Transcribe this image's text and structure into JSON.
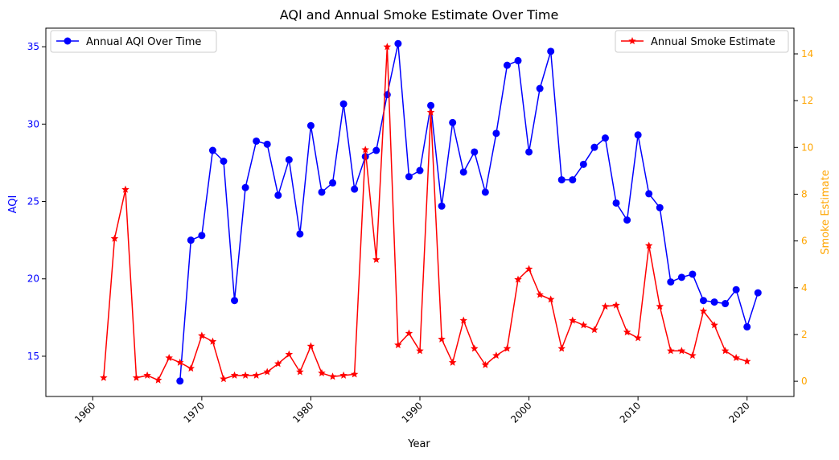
{
  "chart_data": {
    "type": "line",
    "title": "AQI and Annual Smoke Estimate Over Time",
    "xlabel": "Year",
    "xlim": [
      1955.7,
      2024.3
    ],
    "xticks": [
      1960,
      1970,
      1980,
      1990,
      2000,
      2010,
      2020
    ],
    "left_axis": {
      "label": "AQI",
      "ylim": [
        12.4,
        36.2
      ],
      "ticks": [
        15,
        20,
        25,
        30,
        35
      ],
      "color": "#0000ff"
    },
    "right_axis": {
      "label": "Smoke Estimate",
      "ylim": [
        -0.65,
        15.1
      ],
      "ticks": [
        0,
        2,
        4,
        6,
        8,
        10,
        12,
        14
      ],
      "color": "#ffa500"
    },
    "series": [
      {
        "name": "Annual AQI Over Time",
        "axis": "left",
        "color": "#0000ff",
        "marker": "circle",
        "x": [
          1968,
          1969,
          1970,
          1971,
          1972,
          1973,
          1974,
          1975,
          1976,
          1977,
          1978,
          1979,
          1980,
          1981,
          1982,
          1983,
          1984,
          1985,
          1986,
          1987,
          1988,
          1989,
          1990,
          1991,
          1992,
          1993,
          1994,
          1995,
          1996,
          1997,
          1998,
          1999,
          2000,
          2001,
          2002,
          2003,
          2004,
          2005,
          2006,
          2007,
          2008,
          2009,
          2010,
          2011,
          2012,
          2013,
          2014,
          2015,
          2016,
          2017,
          2018,
          2019,
          2020,
          2021
        ],
        "values": [
          13.4,
          22.5,
          22.8,
          28.3,
          27.6,
          18.6,
          25.9,
          28.9,
          28.7,
          25.4,
          27.7,
          22.9,
          29.9,
          25.6,
          26.2,
          31.3,
          25.8,
          27.9,
          28.3,
          31.9,
          35.2,
          26.6,
          27.0,
          31.2,
          24.7,
          30.1,
          26.9,
          28.2,
          25.6,
          29.4,
          33.8,
          34.1,
          28.2,
          32.3,
          34.7,
          26.4,
          26.4,
          27.4,
          28.5,
          29.1,
          24.9,
          23.8,
          29.3,
          25.5,
          24.6,
          19.8,
          20.1,
          20.3,
          18.6,
          18.5,
          18.4,
          19.3,
          16.9,
          19.1
        ]
      },
      {
        "name": "Annual Smoke Estimate",
        "axis": "right",
        "color": "#ff0000",
        "marker": "star",
        "x": [
          1961,
          1962,
          1963,
          1964,
          1965,
          1966,
          1967,
          1968,
          1969,
          1970,
          1971,
          1972,
          1973,
          1974,
          1975,
          1976,
          1977,
          1978,
          1979,
          1980,
          1981,
          1982,
          1983,
          1984,
          1985,
          1986,
          1987,
          1988,
          1989,
          1990,
          1991,
          1992,
          1993,
          1994,
          1995,
          1996,
          1997,
          1998,
          1999,
          2000,
          2001,
          2002,
          2003,
          2004,
          2005,
          2006,
          2007,
          2008,
          2009,
          2010,
          2011,
          2012,
          2013,
          2014,
          2015,
          2016,
          2017,
          2018,
          2019,
          2020
        ],
        "values": [
          0.15,
          6.1,
          8.2,
          0.15,
          0.25,
          0.05,
          1.0,
          0.8,
          0.55,
          1.95,
          1.7,
          0.1,
          0.25,
          0.25,
          0.25,
          0.4,
          0.75,
          1.15,
          0.4,
          1.5,
          0.35,
          0.2,
          0.25,
          0.3,
          9.9,
          5.2,
          14.3,
          1.55,
          2.05,
          1.3,
          11.5,
          1.8,
          0.8,
          2.6,
          1.4,
          0.7,
          1.1,
          1.4,
          4.35,
          4.8,
          3.7,
          3.5,
          1.4,
          2.6,
          2.4,
          2.2,
          3.2,
          3.25,
          2.1,
          1.85,
          5.8,
          3.2,
          1.3,
          1.3,
          1.1,
          3.0,
          2.4,
          1.3,
          1.0,
          0.85
        ]
      }
    ],
    "legends": [
      {
        "placement": "top-left",
        "series_index": 0
      },
      {
        "placement": "top-right",
        "series_index": 1
      }
    ]
  }
}
